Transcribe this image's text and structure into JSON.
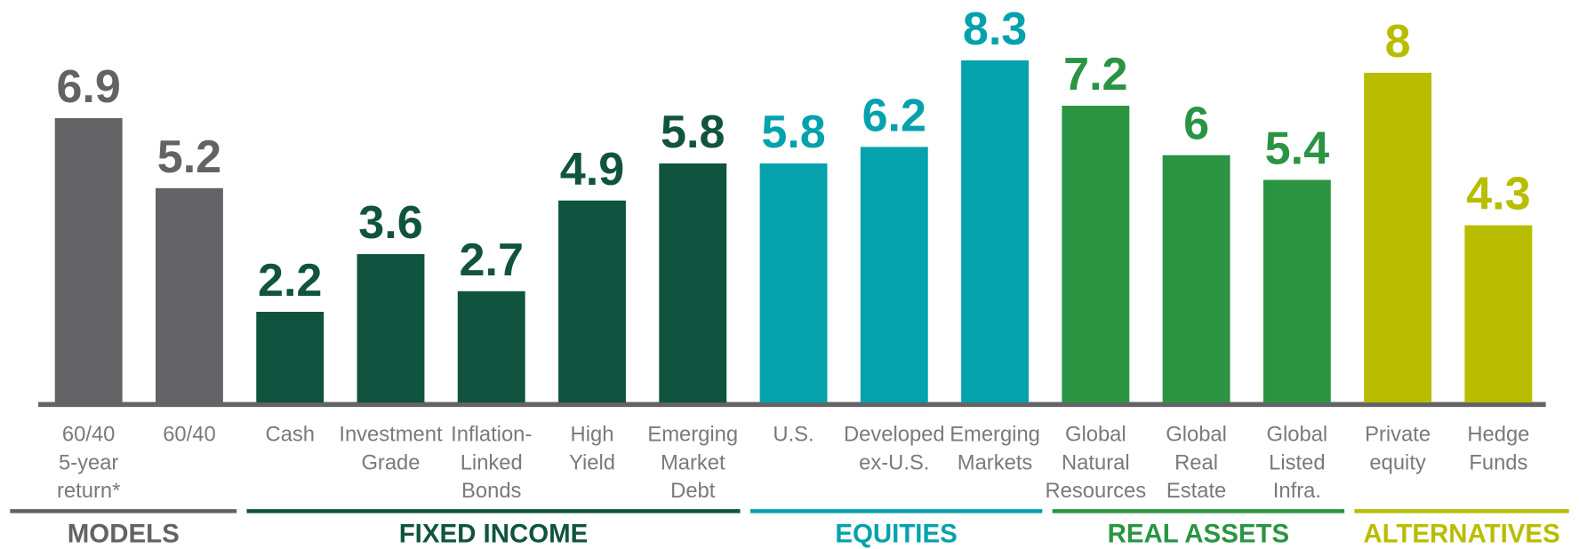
{
  "chart_data": {
    "type": "bar",
    "groups": [
      {
        "name": "MODELS",
        "color": "#636366",
        "categories": [
          [
            "60/40",
            "5-year",
            "return*"
          ],
          [
            "60/40"
          ]
        ],
        "values": [
          6.9,
          5.2
        ]
      },
      {
        "name": "FIXED INCOME",
        "color": "#10543f",
        "categories": [
          [
            "Cash"
          ],
          [
            "Investment",
            "Grade"
          ],
          [
            "Inflation-",
            "Linked",
            "Bonds"
          ],
          [
            "High",
            "Yield"
          ],
          [
            "Emerging",
            "Market",
            "Debt"
          ]
        ],
        "values": [
          2.2,
          3.6,
          2.7,
          4.9,
          5.8
        ]
      },
      {
        "name": "EQUITIES",
        "color": "#04a2ad",
        "categories": [
          [
            "U.S."
          ],
          [
            "Developed",
            "ex-U.S."
          ],
          [
            "Emerging",
            "Markets"
          ]
        ],
        "values": [
          5.8,
          6.2,
          8.3
        ]
      },
      {
        "name": "REAL ASSETS",
        "color": "#2a9443",
        "categories": [
          [
            "Global",
            "Natural",
            "Resources"
          ],
          [
            "Global",
            "Real",
            "Estate"
          ],
          [
            "Global",
            "Listed",
            "Infra."
          ]
        ],
        "values": [
          7.2,
          6.0,
          5.4
        ]
      },
      {
        "name": "ALTERNATIVES",
        "color": "#b8bd00",
        "categories": [
          [
            "Private",
            "equity"
          ],
          [
            "Hedge",
            "Funds"
          ]
        ],
        "values": [
          8.0,
          4.3
        ]
      }
    ]
  }
}
